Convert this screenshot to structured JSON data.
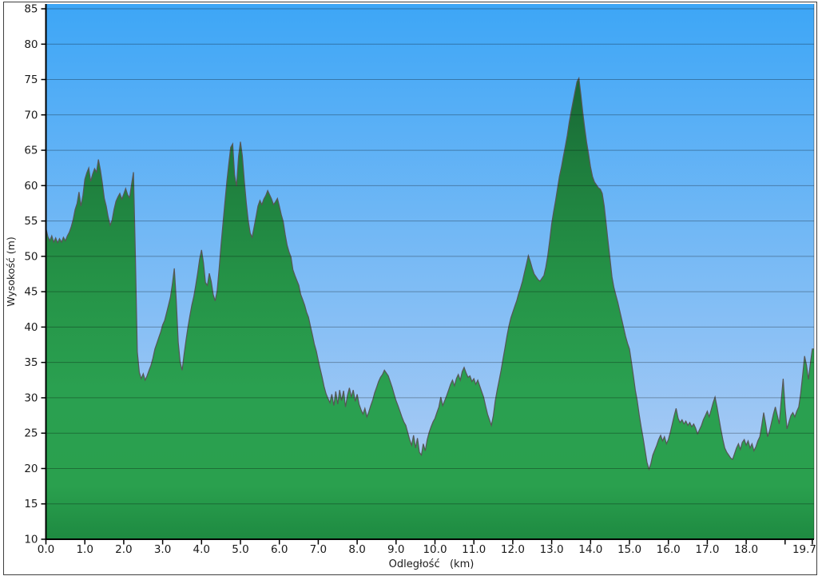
{
  "chart_data": {
    "type": "area",
    "title": "",
    "xlabel": "Odległość   (km)",
    "ylabel": "Wysokość (m)",
    "xlim": [
      0.0,
      19.7
    ],
    "ylim": [
      10,
      85
    ],
    "grid": true,
    "legend": "none",
    "y_ticks": [
      85,
      80,
      75,
      70,
      65,
      60,
      55,
      50,
      45,
      40,
      35,
      30,
      25,
      20,
      15,
      10
    ],
    "x_ticks": [
      {
        "km": 0,
        "label": "0.0"
      },
      {
        "km": 1,
        "label": "1.0"
      },
      {
        "km": 2,
        "label": "2.0"
      },
      {
        "km": 3,
        "label": "3.0"
      },
      {
        "km": 4,
        "label": "4.0"
      },
      {
        "km": 5,
        "label": "5.0"
      },
      {
        "km": 6,
        "label": "6.0"
      },
      {
        "km": 7,
        "label": "7.0"
      },
      {
        "km": 8,
        "label": "8.0"
      },
      {
        "km": 9,
        "label": "9.0"
      },
      {
        "km": 10,
        "label": "10.0"
      },
      {
        "km": 11,
        "label": "11.0"
      },
      {
        "km": 12,
        "label": "12.0"
      },
      {
        "km": 13,
        "label": "13.0"
      },
      {
        "km": 14,
        "label": "14.0"
      },
      {
        "km": 15,
        "label": "15.0"
      },
      {
        "km": 16,
        "label": "16.0"
      },
      {
        "km": 17,
        "label": "17.0"
      },
      {
        "km": 18,
        "label": "18.0"
      },
      {
        "km": 19,
        "label": ""
      },
      {
        "km": 19.7,
        "label": "19.7"
      }
    ],
    "series_name": "elevation-profile",
    "x_start_km": 0.0,
    "x_step_km": 0.05,
    "elevations_m": [
      54.0,
      52.8,
      52.2,
      52.9,
      52.0,
      52.6,
      51.9,
      52.5,
      52.0,
      52.7,
      52.2,
      52.9,
      53.4,
      54.2,
      55.2,
      56.6,
      57.5,
      59.1,
      57.1,
      58.6,
      60.9,
      61.8,
      62.5,
      60.6,
      61.6,
      62.4,
      61.9,
      63.7,
      62.2,
      60.4,
      58.2,
      57.1,
      55.6,
      54.4,
      55.1,
      56.6,
      57.8,
      58.4,
      58.9,
      58.1,
      58.8,
      59.6,
      58.7,
      58.3,
      60.1,
      61.9,
      50.0,
      36.5,
      33.6,
      32.7,
      33.4,
      32.5,
      33.1,
      33.9,
      34.6,
      35.6,
      36.9,
      37.7,
      38.5,
      39.3,
      40.3,
      40.9,
      42.0,
      43.1,
      44.2,
      46.1,
      48.3,
      43.9,
      37.9,
      35.1,
      33.9,
      36.1,
      38.1,
      40.0,
      41.6,
      43.1,
      44.3,
      45.9,
      47.6,
      49.6,
      50.9,
      49.1,
      46.3,
      45.9,
      47.6,
      46.4,
      44.6,
      43.7,
      45.1,
      48.1,
      51.6,
      54.6,
      57.6,
      60.6,
      63.1,
      65.4,
      65.9,
      61.5,
      59.9,
      64.1,
      66.2,
      64.2,
      60.6,
      57.6,
      55.1,
      53.3,
      52.7,
      54.1,
      55.6,
      57.1,
      57.9,
      57.3,
      58.1,
      58.6,
      59.3,
      58.7,
      58.1,
      57.3,
      57.7,
      58.2,
      57.1,
      55.9,
      54.9,
      53.1,
      51.6,
      50.6,
      49.9,
      48.1,
      47.3,
      46.6,
      45.9,
      44.6,
      43.9,
      43.1,
      42.1,
      41.4,
      40.1,
      38.9,
      37.6,
      36.6,
      35.3,
      34.1,
      32.9,
      31.6,
      30.6,
      29.9,
      29.3,
      30.5,
      28.9,
      30.9,
      29.1,
      31.1,
      29.6,
      31.0,
      28.7,
      30.3,
      31.4,
      30.1,
      31.1,
      29.5,
      30.5,
      29.1,
      28.3,
      27.7,
      28.5,
      27.3,
      28.0,
      28.9,
      29.7,
      30.7,
      31.5,
      32.3,
      32.9,
      33.3,
      33.9,
      33.5,
      33.1,
      32.3,
      31.5,
      30.5,
      29.6,
      28.9,
      28.1,
      27.3,
      26.6,
      26.1,
      25.1,
      24.1,
      23.3,
      24.7,
      22.9,
      24.3,
      22.3,
      21.9,
      23.5,
      22.5,
      24.1,
      25.1,
      25.9,
      26.6,
      27.1,
      27.9,
      28.7,
      30.1,
      28.9,
      29.6,
      30.3,
      31.1,
      31.9,
      32.5,
      31.7,
      32.7,
      33.3,
      32.5,
      33.7,
      34.3,
      33.5,
      32.9,
      33.1,
      32.3,
      32.7,
      31.9,
      32.5,
      31.7,
      30.9,
      30.1,
      28.9,
      27.7,
      26.9,
      26.1,
      27.5,
      29.6,
      31.1,
      32.5,
      33.9,
      35.5,
      37.1,
      38.7,
      40.1,
      41.3,
      42.1,
      42.9,
      43.7,
      44.7,
      45.5,
      46.5,
      47.7,
      48.9,
      50.1,
      49.3,
      48.3,
      47.5,
      47.1,
      46.7,
      46.5,
      46.9,
      47.3,
      48.5,
      50.1,
      52.3,
      54.6,
      56.3,
      57.9,
      59.6,
      61.3,
      62.6,
      64.1,
      65.6,
      67.1,
      68.9,
      70.5,
      71.9,
      73.3,
      74.7,
      75.2,
      72.9,
      70.3,
      68.1,
      66.1,
      64.4,
      62.6,
      61.3,
      60.5,
      60.1,
      59.7,
      59.5,
      58.9,
      57.1,
      54.6,
      52.1,
      49.6,
      47.1,
      45.6,
      44.5,
      43.5,
      42.3,
      41.1,
      39.9,
      38.7,
      37.7,
      36.9,
      35.1,
      33.1,
      31.1,
      29.6,
      27.6,
      25.9,
      24.3,
      22.6,
      20.9,
      19.9,
      20.7,
      21.9,
      22.6,
      23.3,
      24.1,
      24.7,
      23.9,
      24.5,
      23.5,
      24.1,
      25.1,
      26.3,
      27.5,
      28.5,
      27.1,
      26.5,
      26.9,
      26.3,
      26.7,
      26.1,
      26.5,
      25.9,
      26.3,
      25.7,
      24.9,
      25.5,
      26.1,
      26.9,
      27.5,
      28.1,
      27.3,
      28.3,
      29.3,
      30.1,
      28.7,
      27.1,
      25.5,
      24.1,
      22.9,
      22.3,
      21.9,
      21.5,
      21.3,
      22.1,
      22.9,
      23.5,
      22.7,
      23.7,
      24.1,
      23.3,
      23.9,
      22.9,
      23.5,
      22.5,
      23.1,
      23.9,
      24.5,
      26.1,
      27.9,
      26.3,
      24.5,
      25.3,
      26.5,
      27.7,
      28.7,
      27.5,
      26.3,
      29.6,
      32.7,
      28.6,
      25.6,
      26.6,
      27.5,
      27.9,
      27.3,
      28.1,
      28.7,
      30.6,
      33.1,
      35.9,
      34.6,
      32.6,
      34.9,
      36.9
    ]
  },
  "style": {
    "sky_top": "#3da6f6",
    "sky_bottom": "#b9d0f4",
    "land_stops": [
      {
        "off": 0.0,
        "color": "#0f4f24"
      },
      {
        "off": 0.12,
        "color": "#176434"
      },
      {
        "off": 0.3,
        "color": "#1e7d3d"
      },
      {
        "off": 0.52,
        "color": "#259347"
      },
      {
        "off": 0.72,
        "color": "#2aa050"
      },
      {
        "off": 0.9,
        "color": "#2aa04e"
      },
      {
        "off": 1.0,
        "color": "#1e8a41"
      }
    ],
    "outline": "#565656",
    "grid": "rgba(0,0,0,0.30)",
    "axis": "#000000",
    "text": "#1a1a1a",
    "panel_border": "#3f3f3f",
    "background": "#ffffff"
  }
}
